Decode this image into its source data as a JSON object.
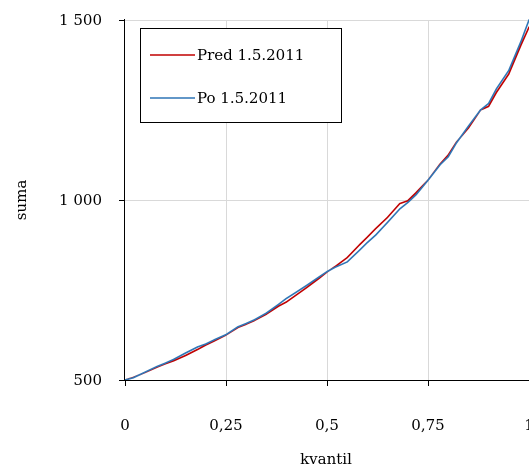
{
  "chart_data": {
    "type": "line",
    "title": "",
    "xlabel": "kvantil",
    "ylabel": "suma",
    "xlim": [
      0,
      1
    ],
    "ylim": [
      500,
      1500
    ],
    "x_ticks": [
      0,
      0.25,
      0.5,
      0.75,
      1
    ],
    "x_tick_labels": [
      "0",
      "0,25",
      "0,5",
      "0,75",
      "1"
    ],
    "y_ticks": [
      500,
      1000,
      1500
    ],
    "y_tick_labels": [
      "500",
      "1 000",
      "1 500"
    ],
    "grid": true,
    "legend_position": "top-left",
    "colors": {
      "series_1": "#c00000",
      "series_2": "#2e75b6",
      "grid": "#d9d9d9"
    },
    "series": [
      {
        "name": "Pred 1.5.2011",
        "color": "#c00000",
        "x": [
          0,
          0.02,
          0.05,
          0.08,
          0.1,
          0.12,
          0.15,
          0.18,
          0.2,
          0.22,
          0.25,
          0.28,
          0.3,
          0.32,
          0.35,
          0.38,
          0.4,
          0.42,
          0.45,
          0.48,
          0.5,
          0.52,
          0.55,
          0.58,
          0.6,
          0.62,
          0.65,
          0.68,
          0.7,
          0.72,
          0.75,
          0.78,
          0.8,
          0.82,
          0.85,
          0.88,
          0.9,
          0.92,
          0.95,
          0.98,
          1
        ],
        "y": [
          500,
          507,
          521,
          536,
          545,
          553,
          568,
          585,
          597,
          608,
          625,
          646,
          655,
          665,
          683,
          705,
          717,
          733,
          757,
          782,
          800,
          815,
          840,
          875,
          897,
          920,
          952,
          990,
          998,
          1020,
          1055,
          1100,
          1125,
          1160,
          1200,
          1250,
          1260,
          1300,
          1350,
          1430,
          1480
        ]
      },
      {
        "name": "Po 1.5.2011",
        "color": "#2e75b6",
        "x": [
          0,
          0.02,
          0.05,
          0.08,
          0.1,
          0.12,
          0.15,
          0.18,
          0.2,
          0.22,
          0.25,
          0.28,
          0.3,
          0.32,
          0.35,
          0.38,
          0.4,
          0.42,
          0.45,
          0.48,
          0.5,
          0.52,
          0.55,
          0.58,
          0.6,
          0.62,
          0.65,
          0.68,
          0.7,
          0.72,
          0.75,
          0.78,
          0.8,
          0.82,
          0.85,
          0.88,
          0.9,
          0.92,
          0.95,
          0.98,
          1
        ],
        "y": [
          500,
          506,
          522,
          538,
          547,
          557,
          575,
          592,
          600,
          611,
          626,
          648,
          657,
          667,
          686,
          710,
          727,
          741,
          763,
          786,
          801,
          813,
          828,
          860,
          882,
          902,
          938,
          975,
          993,
          1014,
          1055,
          1098,
          1120,
          1158,
          1205,
          1250,
          1268,
          1310,
          1360,
          1440,
          1500
        ]
      }
    ]
  }
}
